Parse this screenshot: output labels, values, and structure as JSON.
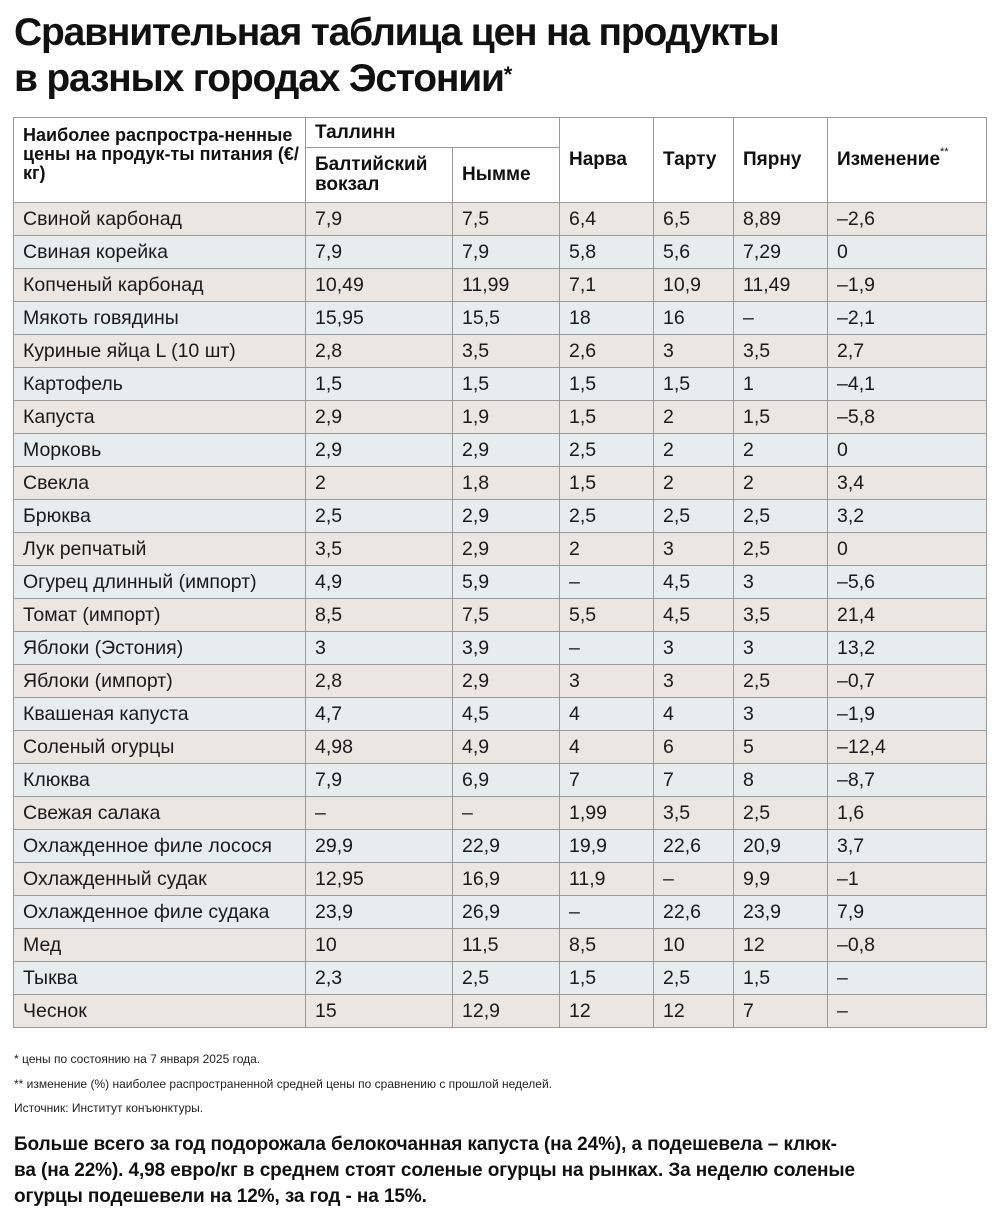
{
  "title": {
    "line1": "Сравнительная таблица цен на продукты",
    "line2": "в разных городах Эстонии",
    "star": "*"
  },
  "table": {
    "header": {
      "product": "Наиболее распростра-ненные цены на продук-ты питания (€/кг)",
      "tallinn": "Таллинн",
      "baltic": "Балтийский вокзал",
      "nomme": "Нымме",
      "narva": "Нарва",
      "tartu": "Тарту",
      "parnu": "Пярну",
      "change": "Изменение",
      "change_mark": "**"
    },
    "rows": [
      [
        "Свиной карбонад",
        "7,9",
        "7,5",
        "6,4",
        "6,5",
        "8,89",
        "–2,6"
      ],
      [
        "Свиная корейка",
        "7,9",
        "7,9",
        "5,8",
        "5,6",
        "7,29",
        "0"
      ],
      [
        "Копченый карбонад",
        "10,49",
        "11,99",
        "7,1",
        "10,9",
        "11,49",
        "–1,9"
      ],
      [
        "Мякоть говядины",
        "15,95",
        "15,5",
        "18",
        "16",
        "–",
        "–2,1"
      ],
      [
        "Куриные яйца L (10 шт)",
        "2,8",
        "3,5",
        "2,6",
        "3",
        "3,5",
        "2,7"
      ],
      [
        "Картофель",
        "1,5",
        "1,5",
        "1,5",
        "1,5",
        "1",
        "–4,1"
      ],
      [
        "Капуста",
        "2,9",
        "1,9",
        "1,5",
        "2",
        "1,5",
        "–5,8"
      ],
      [
        "Морковь",
        "2,9",
        "2,9",
        "2,5",
        "2",
        "2",
        "0"
      ],
      [
        "Свекла",
        "2",
        "1,8",
        "1,5",
        "2",
        "2",
        "3,4"
      ],
      [
        "Брюква",
        "2,5",
        "2,9",
        "2,5",
        "2,5",
        "2,5",
        "3,2"
      ],
      [
        "Лук репчатый",
        "3,5",
        "2,9",
        "2",
        "3",
        "2,5",
        "0"
      ],
      [
        "Огурец длинный (импорт)",
        "4,9",
        "5,9",
        "–",
        "4,5",
        "3",
        "–5,6"
      ],
      [
        "Томат (импорт)",
        "8,5",
        "7,5",
        "5,5",
        "4,5",
        "3,5",
        "21,4"
      ],
      [
        "Яблоки (Эстония)",
        "3",
        "3,9",
        "–",
        "3",
        "3",
        "13,2"
      ],
      [
        "Яблоки (импорт)",
        "2,8",
        "2,9",
        "3",
        "3",
        "2,5",
        "–0,7"
      ],
      [
        "Квашеная капуста",
        "4,7",
        "4,5",
        "4",
        "4",
        "3",
        "–1,9"
      ],
      [
        "Соленый огурцы",
        "4,98",
        "4,9",
        "4",
        "6",
        "5",
        "–12,4"
      ],
      [
        "Клюква",
        "7,9",
        "6,9",
        "7",
        "7",
        "8",
        "–8,7"
      ],
      [
        "Свежая салака",
        "–",
        "–",
        "1,99",
        "3,5",
        "2,5",
        "1,6"
      ],
      [
        "Охлажденное филе лосося",
        "29,9",
        "22,9",
        "19,9",
        "22,6",
        "20,9",
        "3,7"
      ],
      [
        "Охлажденный судак",
        "12,95",
        "16,9",
        "11,9",
        "–",
        "9,9",
        "–1"
      ],
      [
        "Охлажденное филе судака",
        "23,9",
        "26,9",
        "–",
        "22,6",
        "23,9",
        "7,9"
      ],
      [
        "Мед",
        "10",
        "11,5",
        "8,5",
        "10",
        "12",
        "–0,8"
      ],
      [
        "Тыква",
        "2,3",
        "2,5",
        "1,5",
        "2,5",
        "1,5",
        "–"
      ],
      [
        "Чеснок",
        "15",
        "12,9",
        "12",
        "12",
        "7",
        "–"
      ]
    ]
  },
  "notes": {
    "note1": "* цены по состоянию на 7 января 2025 года.",
    "note2": "** изменение (%) наиболее распространенной средней цены по сравнению с прошлой неделей.",
    "source": "Источник: Институт конъюнктуры."
  },
  "summary": {
    "line1": "Больше всего за год подорожала белокочанная капуста (на 24%), а подешевела – клюк-",
    "line2": "ва (на 22%). 4,98 евро/кг в среднем стоят соленые огурцы на рынках. За неделю соленые",
    "line3": "огурцы подешевели на 12%, за год - на 15%."
  }
}
